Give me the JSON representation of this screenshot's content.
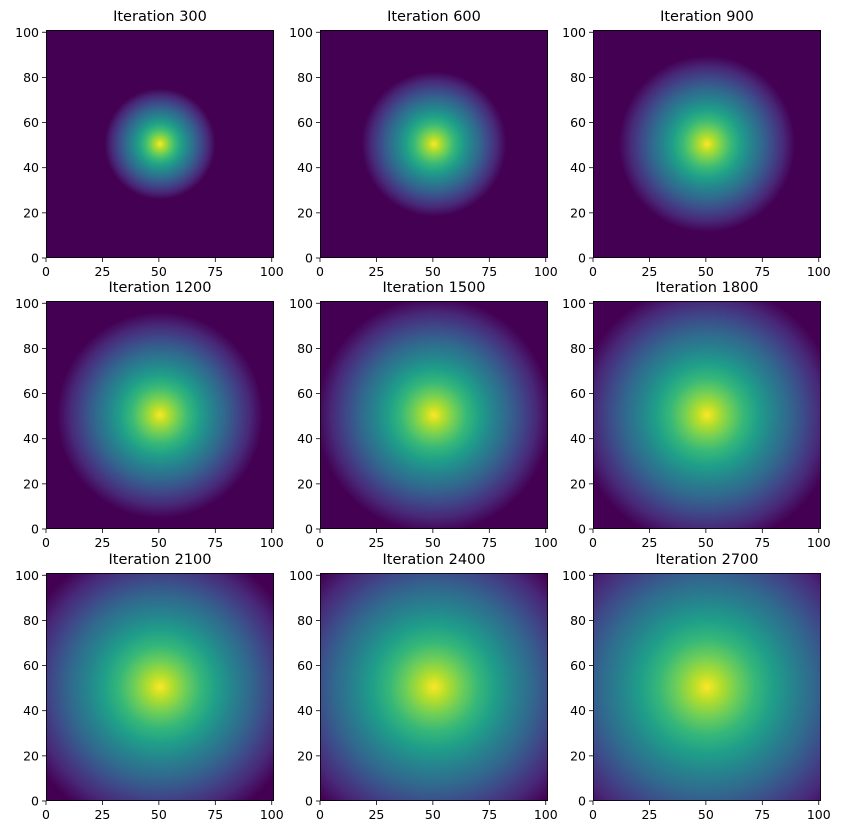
{
  "chart_data": {
    "type": "heatmap",
    "colormap": "viridis",
    "colormap_stops": [
      "#440154",
      "#482878",
      "#3e4989",
      "#31688e",
      "#26828e",
      "#1f9e89",
      "#35b779",
      "#6ece58",
      "#b5de2b",
      "#fde725"
    ],
    "grid": false,
    "xlim": [
      0,
      101
    ],
    "ylim": [
      0,
      101
    ],
    "xticks": [
      "0",
      "25",
      "50",
      "75",
      "100"
    ],
    "yticks": [
      "0",
      "20",
      "40",
      "60",
      "80",
      "100"
    ],
    "peak_center": [
      50,
      50
    ],
    "panels": [
      {
        "title": "Iteration 300",
        "iteration": 300
      },
      {
        "title": "Iteration 600",
        "iteration": 600
      },
      {
        "title": "Iteration 900",
        "iteration": 900
      },
      {
        "title": "Iteration 1200",
        "iteration": 1200
      },
      {
        "title": "Iteration 1500",
        "iteration": 1500
      },
      {
        "title": "Iteration 1800",
        "iteration": 1800
      },
      {
        "title": "Iteration 2100",
        "iteration": 2100
      },
      {
        "title": "Iteration 2400",
        "iteration": 2400
      },
      {
        "title": "Iteration 2700",
        "iteration": 2700
      }
    ]
  }
}
